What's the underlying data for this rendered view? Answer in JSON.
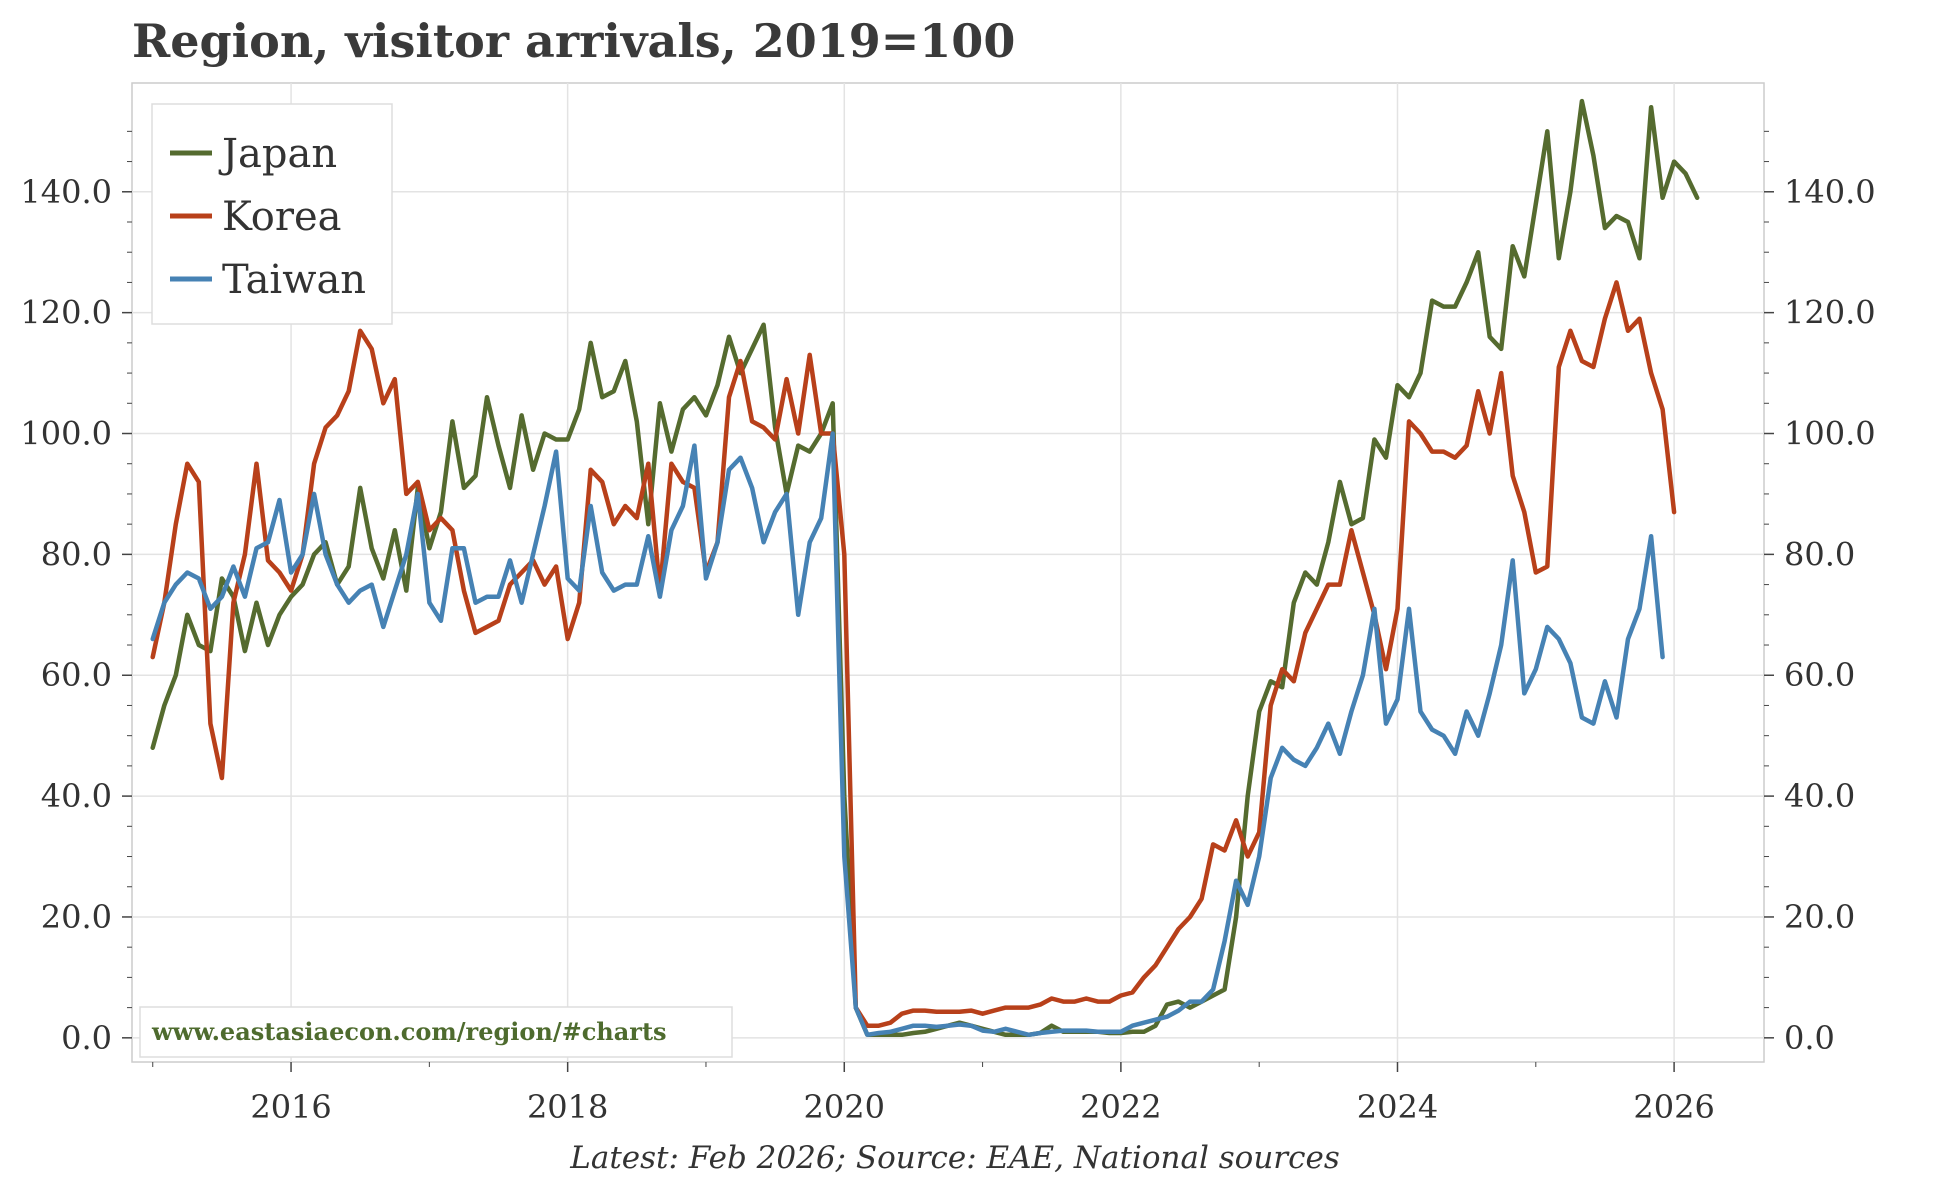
{
  "chart_data": {
    "type": "line",
    "title": "Region, visitor arrivals, 2019=100",
    "xlabel": "",
    "ylabel": "",
    "xlim": [
      2014.85,
      2026.65
    ],
    "ylim": [
      -4,
      158
    ],
    "x_ticks": [
      2016,
      2018,
      2020,
      2022,
      2024,
      2026
    ],
    "x_tick_labels": [
      "2016",
      "2018",
      "2020",
      "2022",
      "2024",
      "2026"
    ],
    "y_ticks": [
      0,
      20,
      40,
      60,
      80,
      100,
      120,
      140
    ],
    "y_tick_labels": [
      "0.0",
      "20.0",
      "40.0",
      "60.0",
      "80.0",
      "100.0",
      "120.0",
      "140.0"
    ],
    "x_start": 2015.0,
    "x_step": 0.0833333,
    "series": [
      {
        "name": "Japan",
        "color": "#556b2f",
        "values": [
          48,
          55,
          60,
          70,
          65,
          64,
          76,
          73,
          64,
          72,
          65,
          70,
          73,
          75,
          80,
          82,
          75,
          78,
          91,
          81,
          76,
          84,
          74,
          91,
          81,
          87,
          102,
          91,
          93,
          106,
          98,
          91,
          103,
          94,
          100,
          99,
          99,
          104,
          115,
          106,
          107,
          112,
          102,
          85,
          105,
          97,
          104,
          106,
          103,
          108,
          116,
          110,
          114,
          118,
          101,
          90,
          98,
          97,
          100,
          105,
          40,
          5,
          0.5,
          0.5,
          0.5,
          0.5,
          0.8,
          1,
          1.5,
          2,
          2.5,
          2,
          1.5,
          1,
          0.5,
          0.5,
          0.5,
          0.8,
          2,
          1,
          1,
          1,
          1,
          0.8,
          0.8,
          1,
          1,
          2,
          5.5,
          6,
          5,
          6,
          7,
          8,
          20,
          40,
          54,
          59,
          58,
          72,
          77,
          75,
          82,
          92,
          85,
          86,
          99,
          96,
          108,
          106,
          110,
          122,
          121,
          121,
          125,
          130,
          116,
          114,
          131,
          126,
          138,
          150,
          129,
          140,
          155,
          146,
          134,
          136,
          135,
          129,
          154,
          139,
          145,
          143,
          139
        ]
      },
      {
        "name": "Korea",
        "color": "#b8401a",
        "values": [
          63,
          72,
          85,
          95,
          92,
          52,
          43,
          72,
          80,
          95,
          79,
          77,
          74,
          80,
          95,
          101,
          103,
          107,
          117,
          114,
          105,
          109,
          90,
          92,
          84,
          86,
          84,
          74,
          67,
          68,
          69,
          75,
          77,
          79,
          75,
          78,
          66,
          72,
          94,
          92,
          85,
          88,
          86,
          95,
          74,
          95,
          92,
          91,
          77,
          82,
          106,
          112,
          102,
          101,
          99,
          109,
          100,
          113,
          100,
          100,
          80,
          5,
          2,
          2,
          2.5,
          4,
          4.5,
          4.5,
          4.3,
          4.3,
          4.3,
          4.5,
          4,
          4.5,
          5,
          5,
          5,
          5.5,
          6.5,
          6,
          6,
          6.5,
          6,
          6,
          7,
          7.5,
          10,
          12,
          15,
          18,
          20,
          23,
          32,
          31,
          36,
          30,
          34,
          55,
          61,
          59,
          67,
          71,
          75,
          75,
          84,
          77,
          70,
          61,
          71,
          102,
          100,
          97,
          97,
          96,
          98,
          107,
          100,
          110,
          93,
          87,
          77,
          78,
          111,
          117,
          112,
          111,
          119,
          125,
          117,
          119,
          110,
          104,
          87
        ]
      },
      {
        "name": "Taiwan",
        "color": "#4682b4",
        "values": [
          66,
          72,
          75,
          77,
          76,
          71,
          73,
          78,
          73,
          81,
          82,
          89,
          77,
          80,
          90,
          80,
          75,
          72,
          74,
          75,
          68,
          74,
          80,
          90,
          72,
          69,
          81,
          81,
          72,
          73,
          73,
          79,
          72,
          80,
          88,
          97,
          76,
          74,
          88,
          77,
          74,
          75,
          75,
          83,
          73,
          84,
          88,
          98,
          76,
          82,
          94,
          96,
          91,
          82,
          87,
          90,
          70,
          82,
          86,
          100,
          30,
          5,
          0.5,
          0.8,
          1,
          1.5,
          2,
          2,
          1.8,
          2,
          2.2,
          2,
          1.2,
          1,
          1.5,
          1,
          0.5,
          0.8,
          1,
          1.2,
          1.2,
          1.2,
          1,
          1,
          1,
          2,
          2.5,
          3,
          3.5,
          4.5,
          6,
          6,
          8,
          16,
          26,
          22,
          30,
          43,
          48,
          46,
          45,
          48,
          52,
          47,
          54,
          60,
          71,
          52,
          56,
          71,
          54,
          51,
          50,
          47,
          54,
          50,
          57,
          65,
          79,
          57,
          61,
          68,
          66,
          62,
          53,
          52,
          59,
          53,
          66,
          71,
          83,
          63
        ]
      }
    ],
    "legend": [
      "Japan",
      "Korea",
      "Taiwan"
    ],
    "legend_position": "top-left",
    "grid": true,
    "watermark": "www.eastasiaecon.com/region/#charts",
    "source_note": "Latest: Feb 2026; Source: EAE, National sources"
  }
}
